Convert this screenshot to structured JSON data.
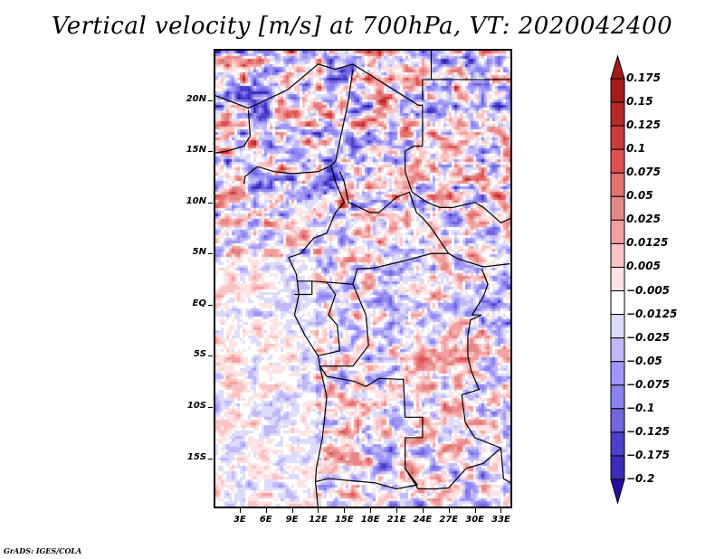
{
  "title": "Vertical velocity [m/s] at 700hPa, VT: 2020042400",
  "credit": "GrADS: IGES/COLA",
  "map": {
    "region": "Central Africa",
    "lon_range_deg": [
      0,
      34.3
    ],
    "lat_range_deg": [
      -19.9,
      25.0
    ],
    "y_axis": {
      "ticks": [
        {
          "label": "20N",
          "lat": 20
        },
        {
          "label": "15N",
          "lat": 15
        },
        {
          "label": "10N",
          "lat": 10
        },
        {
          "label": "5N",
          "lat": 5
        },
        {
          "label": "EQ",
          "lat": 0
        },
        {
          "label": "5S",
          "lat": -5
        },
        {
          "label": "10S",
          "lat": -10
        },
        {
          "label": "15S",
          "lat": -15
        }
      ]
    },
    "x_axis": {
      "ticks": [
        {
          "label": "3E",
          "lon": 3
        },
        {
          "label": "6E",
          "lon": 6
        },
        {
          "label": "9E",
          "lon": 9
        },
        {
          "label": "12E",
          "lon": 12
        },
        {
          "label": "15E",
          "lon": 15
        },
        {
          "label": "18E",
          "lon": 18
        },
        {
          "label": "21E",
          "lon": 21
        },
        {
          "label": "24E",
          "lon": 24
        },
        {
          "label": "27E",
          "lon": 27
        },
        {
          "label": "30E",
          "lon": 30
        },
        {
          "label": "33E",
          "lon": 33
        }
      ]
    }
  },
  "colorbar": {
    "levels": [
      {
        "label": "0.175",
        "color": "#a51c1c"
      },
      {
        "label": "0.15",
        "color": "#b92828"
      },
      {
        "label": "0.125",
        "color": "#cc3a3a"
      },
      {
        "label": "0.1",
        "color": "#e05050"
      },
      {
        "label": "0.075",
        "color": "#e57070"
      },
      {
        "label": "0.05",
        "color": "#e48888"
      },
      {
        "label": "0.025",
        "color": "#f4a0a0"
      },
      {
        "label": "0.0125",
        "color": "#fbc3c3"
      },
      {
        "label": "0.005",
        "color": "#fde3e3"
      },
      {
        "label": "-0.005",
        "color": "#ffffff"
      },
      {
        "label": "-0.0125",
        "color": "#dcdcfa"
      },
      {
        "label": "-0.025",
        "color": "#c0b8f8"
      },
      {
        "label": "-0.05",
        "color": "#a096fa"
      },
      {
        "label": "-0.075",
        "color": "#8a82ee"
      },
      {
        "label": "-0.1",
        "color": "#7066de"
      },
      {
        "label": "-0.125",
        "color": "#4a40cc"
      },
      {
        "label": "-0.175",
        "color": "#3a2cb8"
      },
      {
        "label": "-0.2",
        "color": "#2e22a8"
      }
    ],
    "top_arrow_color": "#a51c1c",
    "bottom_arrow_color": "#2a0ca0"
  }
}
